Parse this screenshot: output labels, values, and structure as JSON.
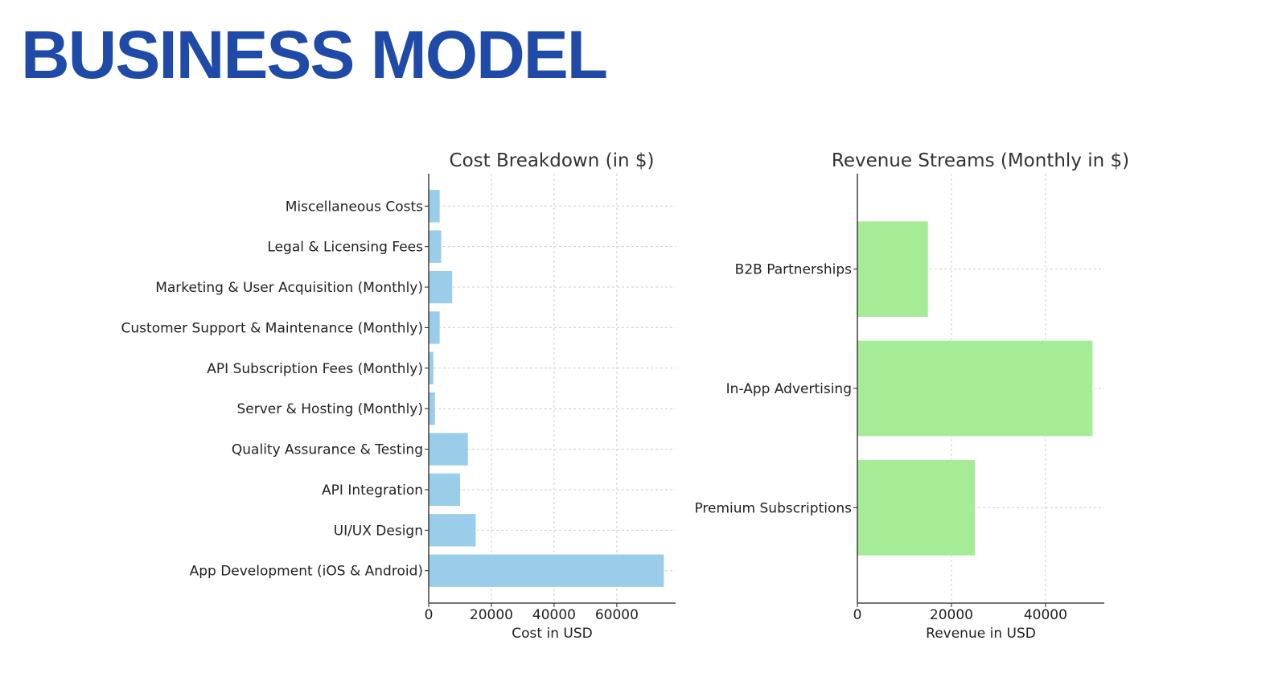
{
  "slide": {
    "title": "BUSINESS MODEL",
    "title_color": "#1f4aa8"
  },
  "chart_data": [
    {
      "type": "bar",
      "orientation": "horizontal",
      "title": "Cost Breakdown (in $)",
      "xlabel": "Cost in USD",
      "ylabel": "",
      "categories": [
        "App Development (iOS & Android)",
        "UI/UX Design",
        "API Integration",
        "Quality Assurance & Testing",
        "Server & Hosting (Monthly)",
        "API Subscription Fees (Monthly)",
        "Customer Support & Maintenance (Monthly)",
        "Marketing & User Acquisition (Monthly)",
        "Legal & Licensing Fees",
        "Miscellaneous Costs"
      ],
      "values": [
        75000,
        15000,
        10000,
        12500,
        2000,
        1500,
        3500,
        7500,
        4000,
        3500
      ],
      "xlim": [
        0,
        78750
      ],
      "xticks": [
        0,
        20000,
        40000,
        60000
      ],
      "grid": true,
      "bar_color": "#99cdea"
    },
    {
      "type": "bar",
      "orientation": "horizontal",
      "title": "Revenue Streams (Monthly in $)",
      "xlabel": "Revenue in USD",
      "ylabel": "",
      "categories": [
        "Premium Subscriptions",
        "In-App Advertising",
        "B2B Partnerships"
      ],
      "values": [
        25000,
        50000,
        15000
      ],
      "xlim": [
        0,
        52500
      ],
      "xticks": [
        0,
        20000,
        40000
      ],
      "grid": true,
      "bar_color": "#a6ec96"
    }
  ]
}
